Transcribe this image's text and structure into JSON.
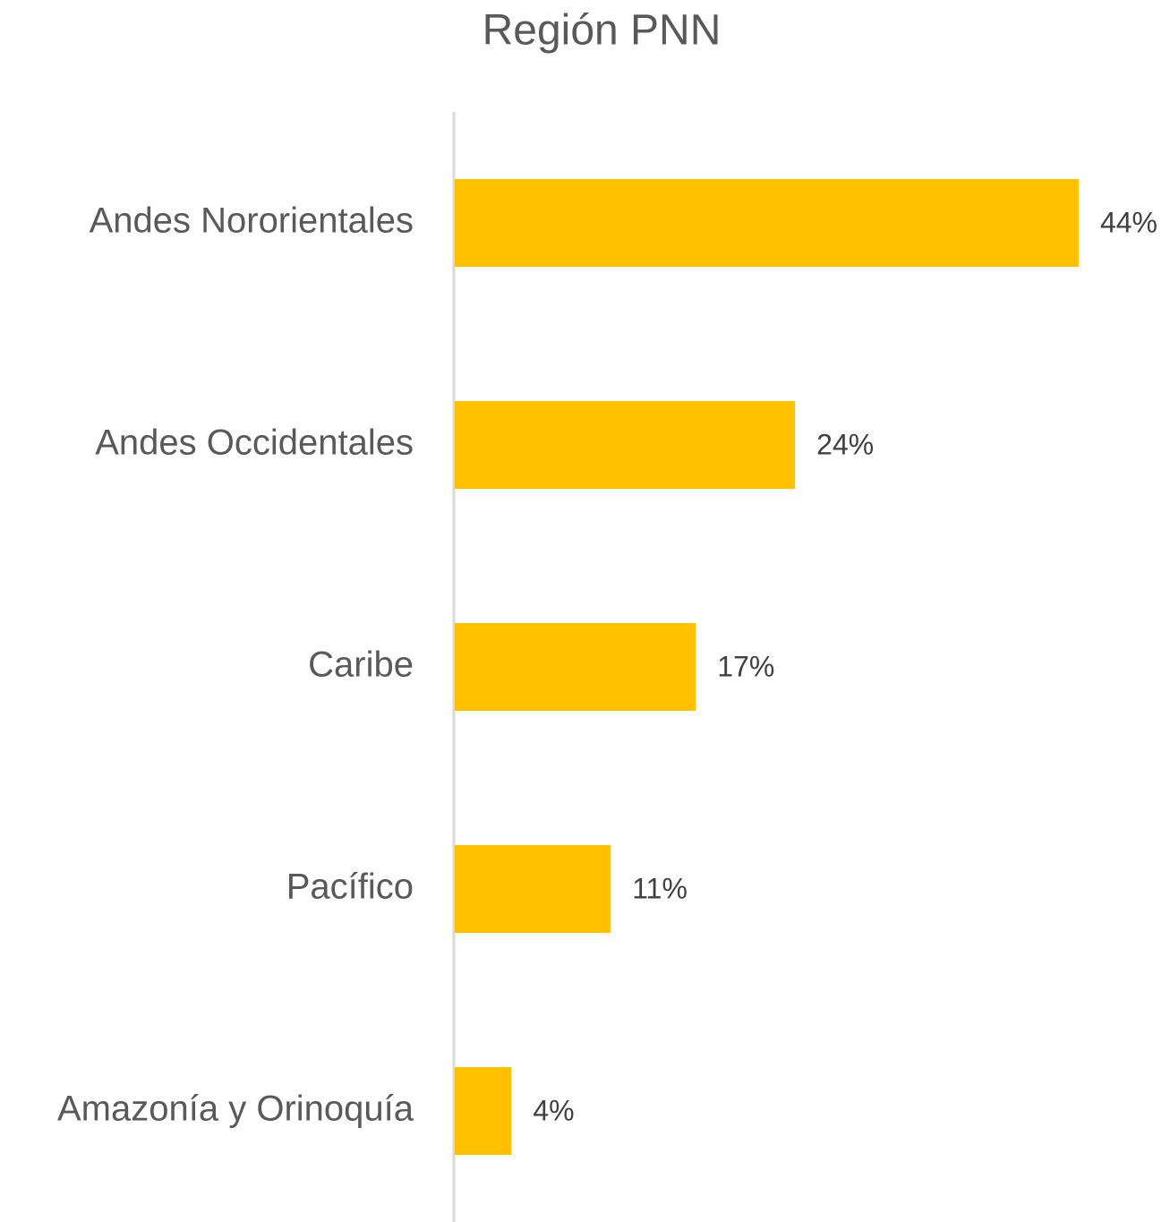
{
  "chart_data": {
    "type": "bar",
    "orientation": "horizontal",
    "title": "Región PNN",
    "categories": [
      "Andes Nororientales",
      "Andes Occidentales",
      "Caribe",
      "Pacífico",
      "Amazonía y Orinoquía"
    ],
    "values": [
      44,
      24,
      17,
      11,
      4
    ],
    "value_labels": [
      "44%",
      "24%",
      "17%",
      "11%",
      "4%"
    ],
    "color": "#ffc000",
    "xlim": [
      0,
      50
    ]
  }
}
